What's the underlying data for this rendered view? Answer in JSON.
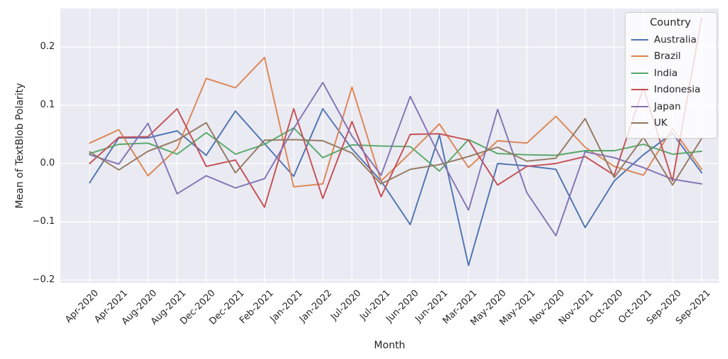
{
  "figure": {
    "background": "#ffffff",
    "axes_background": "#eaeaf2",
    "grid_color": "#ffffff",
    "text_color": "#262626"
  },
  "chart_data": {
    "type": "line",
    "title": "",
    "xlabel": "Month",
    "ylabel": "Mean of TextBlob Polarity",
    "grid": true,
    "ylim": [
      -0.205,
      0.266
    ],
    "yticks": [
      0.2,
      0.1,
      0.0,
      -0.1,
      -0.2
    ],
    "ytick_labels": [
      "0.2",
      "0.1",
      "0.0",
      "−0.1",
      "−0.2"
    ],
    "legend": {
      "title": "Country",
      "position": "upper right"
    },
    "categories": [
      "Apr-2020",
      "Apr-2021",
      "Aug-2020",
      "Aug-2021",
      "Dec-2020",
      "Dec-2021",
      "Feb-2021",
      "Jan-2021",
      "Jan-2022",
      "Jul-2020",
      "Jul-2021",
      "Jun-2020",
      "Jun-2021",
      "Mar-2021",
      "May-2020",
      "May-2021",
      "Nov-2020",
      "Nov-2021",
      "Oct-2020",
      "Oct-2021",
      "Sep-2020",
      "Sep-2021"
    ],
    "series": [
      {
        "name": "Australia",
        "color": "#4c72b0",
        "values": [
          -0.033,
          0.044,
          0.044,
          0.056,
          0.014,
          0.09,
          0.034,
          -0.022,
          0.094,
          0.025,
          -0.03,
          -0.105,
          0.049,
          -0.175,
          0.0,
          -0.004,
          -0.01,
          -0.11,
          -0.03,
          0.015,
          0.052,
          -0.016
        ]
      },
      {
        "name": "Brazil",
        "color": "#dd8452",
        "values": [
          0.035,
          0.058,
          -0.021,
          0.026,
          0.146,
          0.13,
          0.182,
          -0.04,
          -0.035,
          0.131,
          -0.03,
          0.018,
          0.068,
          -0.007,
          0.039,
          0.035,
          0.081,
          0.028,
          -0.005,
          -0.02,
          0.06,
          -0.01
        ]
      },
      {
        "name": "India",
        "color": "#55a868",
        "values": [
          0.017,
          0.033,
          0.035,
          0.016,
          0.053,
          0.016,
          0.033,
          0.061,
          0.01,
          0.032,
          0.03,
          0.029,
          -0.013,
          0.041,
          0.017,
          0.015,
          0.014,
          0.022,
          0.022,
          0.033,
          0.016,
          0.021
        ]
      },
      {
        "name": "Indonesia",
        "color": "#c44e52",
        "values": [
          0.0,
          0.045,
          0.046,
          0.094,
          -0.005,
          0.006,
          -0.075,
          0.094,
          -0.06,
          0.072,
          -0.057,
          0.05,
          0.051,
          0.04,
          -0.037,
          -0.005,
          0.0,
          0.012,
          -0.02,
          0.13,
          -0.03,
          0.25
        ]
      },
      {
        "name": "Japan",
        "color": "#8172b3",
        "values": [
          0.015,
          -0.001,
          0.069,
          -0.052,
          -0.021,
          -0.042,
          -0.026,
          0.06,
          0.139,
          0.047,
          -0.02,
          0.115,
          0.013,
          -0.08,
          0.093,
          -0.05,
          -0.124,
          0.02,
          0.01,
          -0.007,
          -0.027,
          -0.035
        ]
      },
      {
        "name": "UK",
        "color": "#937860",
        "values": [
          0.02,
          -0.011,
          0.021,
          0.04,
          0.07,
          -0.016,
          0.04,
          0.041,
          0.039,
          0.018,
          -0.035,
          -0.01,
          -0.002,
          0.012,
          0.028,
          0.004,
          0.009,
          0.077,
          -0.024,
          0.045,
          -0.037,
          0.043
        ]
      }
    ]
  }
}
